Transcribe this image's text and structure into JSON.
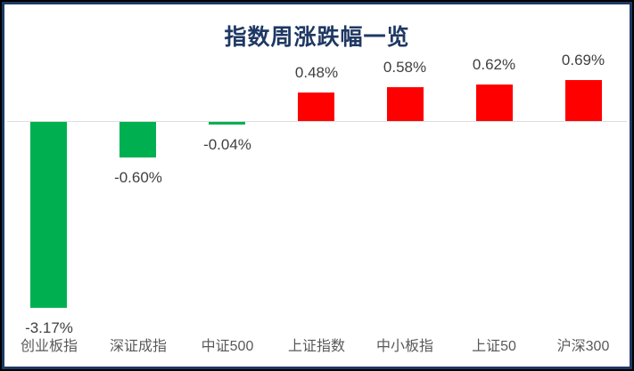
{
  "chart_data": {
    "type": "bar",
    "title": "指数周涨跌幅一览",
    "categories": [
      "创业板指",
      "深证成指",
      "中证500",
      "上证指数",
      "中小板指",
      "上证50",
      "沪深300"
    ],
    "values": [
      -3.17,
      -0.6,
      -0.04,
      0.48,
      0.58,
      0.62,
      0.69
    ],
    "labels": [
      "-3.17%",
      "-0.60%",
      "-0.04%",
      "0.48%",
      "0.58%",
      "0.62%",
      "0.69%"
    ],
    "unit": "%",
    "ylim": [
      -3.5,
      1.0
    ],
    "grid": false,
    "legend": false,
    "colors": {
      "positive_bar": "#FF0000",
      "negative_bar": "#00B050",
      "title": "#1F3864",
      "value_label": "#404040",
      "category_label": "#595959",
      "axis_line": "#DDDDDD",
      "frame_border": "#1F3864",
      "outer_border": "#000000"
    }
  }
}
